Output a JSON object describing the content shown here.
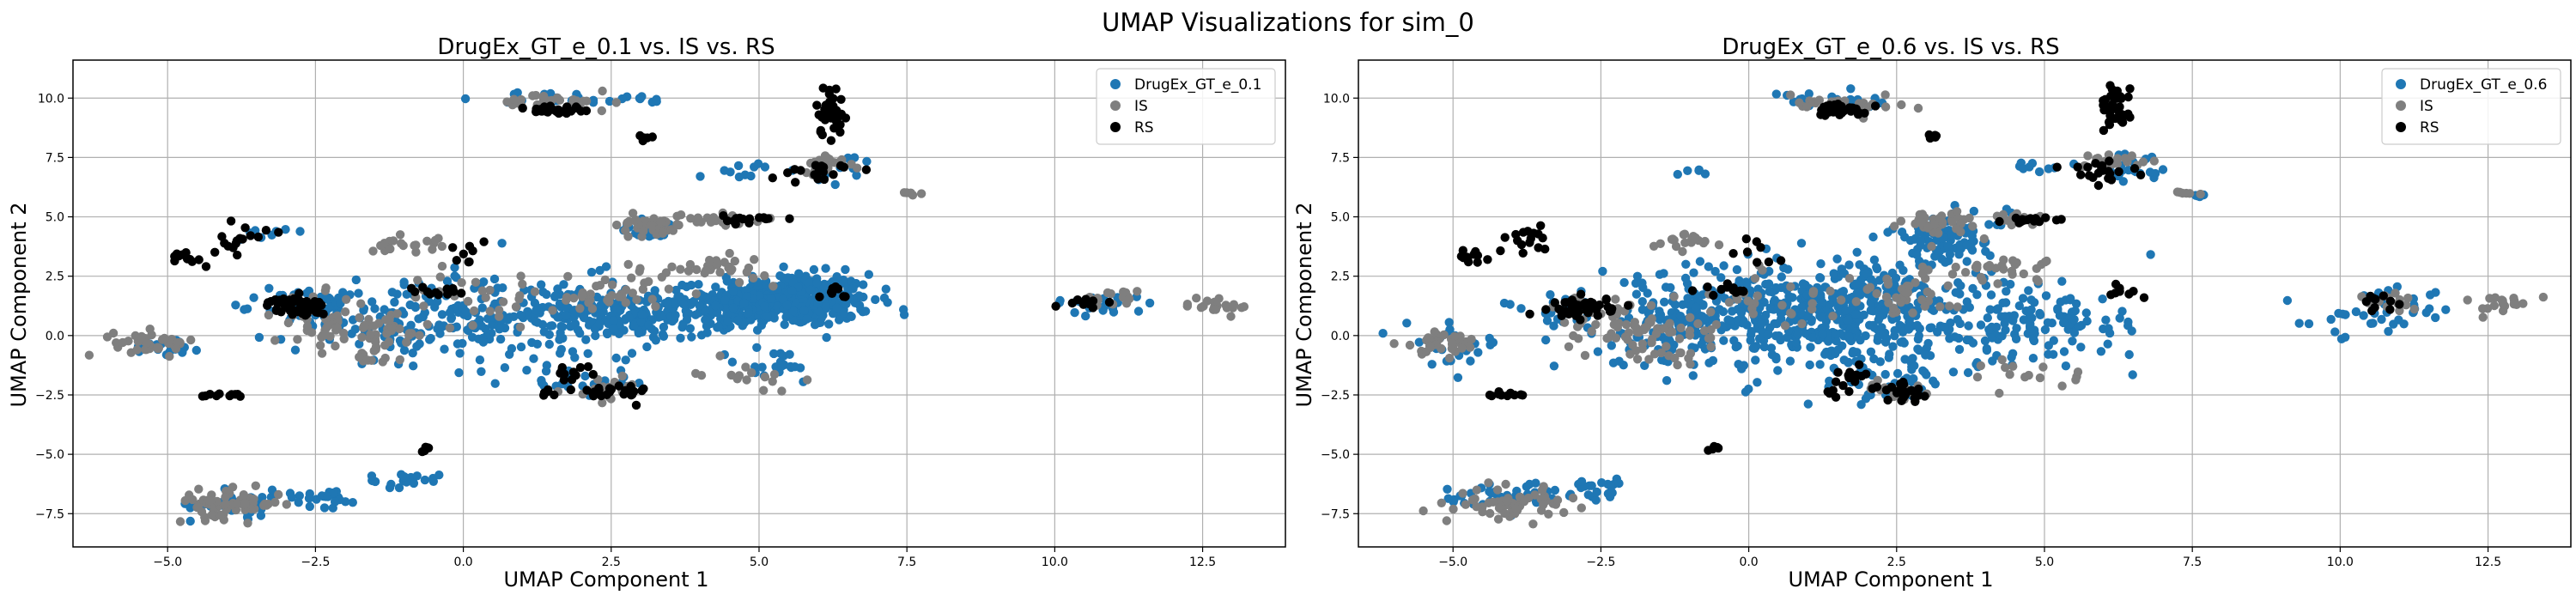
{
  "figure": {
    "suptitle": "UMAP Visualizations for sim_0"
  },
  "chart_data": [
    {
      "type": "scatter",
      "title": "DrugEx_GT_e_0.1 vs. IS vs. RS",
      "xlabel": "UMAP Component 1",
      "ylabel": "UMAP Component 2",
      "xlim": [
        -6.6,
        13.9
      ],
      "ylim": [
        -8.9,
        11.6
      ],
      "xticks": [
        -5.0,
        -2.5,
        0.0,
        2.5,
        5.0,
        7.5,
        10.0,
        12.5
      ],
      "xtick_labels": [
        "−5.0",
        "−2.5",
        "0.0",
        "2.5",
        "5.0",
        "7.5",
        "10.0",
        "12.5"
      ],
      "yticks": [
        -7.5,
        -5.0,
        -2.5,
        0.0,
        2.5,
        5.0,
        7.5,
        10.0
      ],
      "ytick_labels": [
        "−7.5",
        "−5.0",
        "−2.5",
        "0.0",
        "2.5",
        "5.0",
        "7.5",
        "10.0"
      ],
      "grid": true,
      "legend_position": "top-right",
      "series": [
        {
          "name": "DrugEx_GT_e_0.1",
          "color": "#1f77b4",
          "clusters": [
            {
              "x": 5.5,
              "y": 1.5,
              "sx": 0.7,
              "sy": 0.55,
              "n": 420
            },
            {
              "x": 4.8,
              "y": 1.2,
              "sx": 0.35,
              "sy": 0.35,
              "n": 90
            },
            {
              "x": 3.1,
              "y": 0.9,
              "sx": 0.7,
              "sy": 0.5,
              "n": 160
            },
            {
              "x": 1.2,
              "y": 0.7,
              "sx": 1.3,
              "sy": 0.9,
              "n": 170
            },
            {
              "x": -1.0,
              "y": 0.8,
              "sx": 1.0,
              "sy": 0.9,
              "n": 120
            },
            {
              "x": -2.6,
              "y": 1.2,
              "sx": 0.4,
              "sy": 0.35,
              "n": 40
            },
            {
              "x": 1.9,
              "y": -1.8,
              "sx": 0.6,
              "sy": 0.4,
              "n": 25
            },
            {
              "x": 5.2,
              "y": -1.3,
              "sx": 0.5,
              "sy": 0.4,
              "n": 20
            },
            {
              "x": 3.2,
              "y": 4.5,
              "sx": 0.3,
              "sy": 0.2,
              "n": 25
            },
            {
              "x": 1.5,
              "y": 10.0,
              "sx": 0.6,
              "sy": 0.15,
              "n": 20
            },
            {
              "x": 3.0,
              "y": 9.9,
              "sx": 0.2,
              "sy": 0.1,
              "n": 8
            },
            {
              "x": 6.5,
              "y": 7.0,
              "sx": 0.35,
              "sy": 0.3,
              "n": 15
            },
            {
              "x": 4.7,
              "y": 6.9,
              "sx": 0.4,
              "sy": 0.2,
              "n": 10
            },
            {
              "x": 10.8,
              "y": 1.3,
              "sx": 0.5,
              "sy": 0.25,
              "n": 18
            },
            {
              "x": -5.0,
              "y": -0.4,
              "sx": 0.3,
              "sy": 0.2,
              "n": 20
            },
            {
              "x": -3.8,
              "y": -7.1,
              "sx": 0.4,
              "sy": 0.3,
              "n": 35
            },
            {
              "x": -2.3,
              "y": -6.8,
              "sx": 0.35,
              "sy": 0.2,
              "n": 25
            },
            {
              "x": -1.0,
              "y": -6.1,
              "sx": 0.3,
              "sy": 0.15,
              "n": 20
            },
            {
              "x": -3.4,
              "y": 4.3,
              "sx": 0.2,
              "sy": 0.2,
              "n": 8
            }
          ]
        },
        {
          "name": "IS",
          "color": "#7f7f7f",
          "clusters": [
            {
              "x": -5.2,
              "y": -0.3,
              "sx": 0.35,
              "sy": 0.25,
              "n": 40
            },
            {
              "x": -4.0,
              "y": -7.1,
              "sx": 0.45,
              "sy": 0.3,
              "n": 60
            },
            {
              "x": -2.4,
              "y": 0.5,
              "sx": 0.4,
              "sy": 0.6,
              "n": 40
            },
            {
              "x": -1.5,
              "y": 0.2,
              "sx": 0.5,
              "sy": 0.4,
              "n": 40
            },
            {
              "x": 3.2,
              "y": 4.7,
              "sx": 0.3,
              "sy": 0.3,
              "n": 40
            },
            {
              "x": 4.2,
              "y": 2.8,
              "sx": 0.5,
              "sy": 0.25,
              "n": 30
            },
            {
              "x": 4.5,
              "y": 4.9,
              "sx": 0.3,
              "sy": 0.12,
              "n": 20
            },
            {
              "x": 2.5,
              "y": 1.8,
              "sx": 0.5,
              "sy": 0.5,
              "n": 40
            },
            {
              "x": 1.6,
              "y": 9.8,
              "sx": 0.5,
              "sy": 0.2,
              "n": 30
            },
            {
              "x": 6.2,
              "y": 7.3,
              "sx": 0.25,
              "sy": 0.2,
              "n": 20
            },
            {
              "x": 10.9,
              "y": 1.5,
              "sx": 0.3,
              "sy": 0.2,
              "n": 15
            },
            {
              "x": 12.8,
              "y": 1.3,
              "sx": 0.3,
              "sy": 0.2,
              "n": 20
            },
            {
              "x": 0.2,
              "y": 1.5,
              "sx": 0.6,
              "sy": 0.6,
              "n": 30
            },
            {
              "x": -1.0,
              "y": 3.9,
              "sx": 0.3,
              "sy": 0.2,
              "n": 20
            },
            {
              "x": 2.5,
              "y": -2.3,
              "sx": 0.3,
              "sy": 0.25,
              "n": 20
            },
            {
              "x": 7.5,
              "y": 6.0,
              "sx": 0.12,
              "sy": 0.05,
              "n": 6
            },
            {
              "x": 4.8,
              "y": -1.6,
              "sx": 0.4,
              "sy": 0.3,
              "n": 15
            },
            {
              "x": -1.6,
              "y": -0.9,
              "sx": 0.3,
              "sy": 0.2,
              "n": 10
            }
          ]
        },
        {
          "name": "RS",
          "color": "#000000",
          "clusters": [
            {
              "x": -2.8,
              "y": 1.2,
              "sx": 0.25,
              "sy": 0.2,
              "n": 50
            },
            {
              "x": 6.2,
              "y": 9.5,
              "sx": 0.12,
              "sy": 0.55,
              "n": 35
            },
            {
              "x": 1.6,
              "y": 9.5,
              "sx": 0.3,
              "sy": 0.12,
              "n": 30
            },
            {
              "x": 2.6,
              "y": -2.4,
              "sx": 0.25,
              "sy": 0.2,
              "n": 25
            },
            {
              "x": 4.9,
              "y": 4.9,
              "sx": 0.25,
              "sy": 0.08,
              "n": 15
            },
            {
              "x": 5.9,
              "y": 6.9,
              "sx": 0.35,
              "sy": 0.25,
              "n": 20
            },
            {
              "x": -3.7,
              "y": 4.0,
              "sx": 0.2,
              "sy": 0.3,
              "n": 15
            },
            {
              "x": -4.6,
              "y": 3.3,
              "sx": 0.2,
              "sy": 0.2,
              "n": 12
            },
            {
              "x": -4.1,
              "y": -2.5,
              "sx": 0.2,
              "sy": 0.05,
              "n": 10
            },
            {
              "x": -0.6,
              "y": -4.8,
              "sx": 0.06,
              "sy": 0.06,
              "n": 5
            },
            {
              "x": 10.6,
              "y": 1.4,
              "sx": 0.25,
              "sy": 0.2,
              "n": 10
            },
            {
              "x": -0.5,
              "y": 1.9,
              "sx": 0.2,
              "sy": 0.15,
              "n": 12
            },
            {
              "x": 1.8,
              "y": -1.7,
              "sx": 0.2,
              "sy": 0.2,
              "n": 12
            },
            {
              "x": 3.1,
              "y": 8.4,
              "sx": 0.08,
              "sy": 0.08,
              "n": 5
            },
            {
              "x": 0.2,
              "y": 3.6,
              "sx": 0.2,
              "sy": 0.3,
              "n": 8
            },
            {
              "x": 1.4,
              "y": -2.4,
              "sx": 0.1,
              "sy": 0.08,
              "n": 6
            },
            {
              "x": 6.3,
              "y": 1.8,
              "sx": 0.15,
              "sy": 0.15,
              "n": 8
            }
          ]
        }
      ]
    },
    {
      "type": "scatter",
      "title": "DrugEx_GT_e_0.6 vs. IS vs. RS",
      "xlabel": "UMAP Component 1",
      "ylabel": "UMAP Component 2",
      "xlim": [
        -6.6,
        13.9
      ],
      "ylim": [
        -8.9,
        11.6
      ],
      "xticks": [
        -5.0,
        -2.5,
        0.0,
        2.5,
        5.0,
        7.5,
        10.0,
        12.5
      ],
      "xtick_labels": [
        "−5.0",
        "−2.5",
        "0.0",
        "2.5",
        "5.0",
        "7.5",
        "10.0",
        "12.5"
      ],
      "yticks": [
        -7.5,
        -5.0,
        -2.5,
        0.0,
        2.5,
        5.0,
        7.5,
        10.0
      ],
      "ytick_labels": [
        "−7.5",
        "−5.0",
        "−2.5",
        "0.0",
        "2.5",
        "5.0",
        "7.5",
        "10.0"
      ],
      "grid": true,
      "legend_position": "top-right",
      "series": [
        {
          "name": "DrugEx_GT_e_0.6",
          "color": "#1f77b4",
          "clusters": [
            {
              "x": 1.0,
              "y": 0.8,
              "sx": 1.6,
              "sy": 1.2,
              "n": 420
            },
            {
              "x": 2.3,
              "y": 1.5,
              "sx": 0.9,
              "sy": 1.0,
              "n": 150
            },
            {
              "x": -1.0,
              "y": 0.6,
              "sx": 1.1,
              "sy": 0.9,
              "n": 120
            },
            {
              "x": 3.4,
              "y": 4.2,
              "sx": 0.5,
              "sy": 0.5,
              "n": 80
            },
            {
              "x": 4.2,
              "y": 0.3,
              "sx": 0.6,
              "sy": 0.7,
              "n": 60
            },
            {
              "x": 5.5,
              "y": 0.4,
              "sx": 0.6,
              "sy": 0.6,
              "n": 50
            },
            {
              "x": 2.2,
              "y": -1.8,
              "sx": 0.6,
              "sy": 0.6,
              "n": 40
            },
            {
              "x": 6.4,
              "y": 7.0,
              "sx": 0.4,
              "sy": 0.3,
              "n": 25
            },
            {
              "x": 1.5,
              "y": 9.8,
              "sx": 0.6,
              "sy": 0.2,
              "n": 20
            },
            {
              "x": 10.7,
              "y": 1.0,
              "sx": 0.6,
              "sy": 0.5,
              "n": 40
            },
            {
              "x": -4.2,
              "y": -6.8,
              "sx": 0.5,
              "sy": 0.3,
              "n": 35
            },
            {
              "x": -2.6,
              "y": -6.5,
              "sx": 0.4,
              "sy": 0.25,
              "n": 25
            },
            {
              "x": -5.0,
              "y": -0.4,
              "sx": 0.4,
              "sy": 0.4,
              "n": 25
            },
            {
              "x": -0.8,
              "y": 6.9,
              "sx": 0.15,
              "sy": 0.1,
              "n": 5
            },
            {
              "x": 4.8,
              "y": 7.1,
              "sx": 0.3,
              "sy": 0.1,
              "n": 8
            },
            {
              "x": 7.6,
              "y": 5.9,
              "sx": 0.15,
              "sy": 0.05,
              "n": 5
            },
            {
              "x": -3.1,
              "y": 1.1,
              "sx": 0.3,
              "sy": 0.3,
              "n": 20
            }
          ]
        },
        {
          "name": "IS",
          "color": "#7f7f7f",
          "clusters": [
            {
              "x": -5.2,
              "y": -0.3,
              "sx": 0.35,
              "sy": 0.25,
              "n": 40
            },
            {
              "x": -4.0,
              "y": -7.1,
              "sx": 0.45,
              "sy": 0.3,
              "n": 60
            },
            {
              "x": -2.4,
              "y": 0.5,
              "sx": 0.4,
              "sy": 0.6,
              "n": 40
            },
            {
              "x": -1.5,
              "y": 0.2,
              "sx": 0.5,
              "sy": 0.4,
              "n": 40
            },
            {
              "x": 3.2,
              "y": 4.7,
              "sx": 0.3,
              "sy": 0.3,
              "n": 40
            },
            {
              "x": 4.2,
              "y": 2.8,
              "sx": 0.5,
              "sy": 0.25,
              "n": 30
            },
            {
              "x": 4.5,
              "y": 4.9,
              "sx": 0.3,
              "sy": 0.12,
              "n": 20
            },
            {
              "x": 2.5,
              "y": 1.8,
              "sx": 0.5,
              "sy": 0.5,
              "n": 40
            },
            {
              "x": 1.6,
              "y": 9.8,
              "sx": 0.5,
              "sy": 0.2,
              "n": 30
            },
            {
              "x": 6.2,
              "y": 7.3,
              "sx": 0.25,
              "sy": 0.2,
              "n": 20
            },
            {
              "x": 10.9,
              "y": 1.5,
              "sx": 0.3,
              "sy": 0.2,
              "n": 15
            },
            {
              "x": 12.8,
              "y": 1.3,
              "sx": 0.3,
              "sy": 0.2,
              "n": 20
            },
            {
              "x": 0.2,
              "y": 1.5,
              "sx": 0.6,
              "sy": 0.6,
              "n": 30
            },
            {
              "x": -1.0,
              "y": 3.9,
              "sx": 0.3,
              "sy": 0.2,
              "n": 20
            },
            {
              "x": 2.5,
              "y": -2.3,
              "sx": 0.3,
              "sy": 0.25,
              "n": 20
            },
            {
              "x": 7.5,
              "y": 6.0,
              "sx": 0.12,
              "sy": 0.05,
              "n": 6
            },
            {
              "x": 4.8,
              "y": -1.6,
              "sx": 0.4,
              "sy": 0.3,
              "n": 15
            },
            {
              "x": -1.6,
              "y": -0.9,
              "sx": 0.3,
              "sy": 0.2,
              "n": 10
            }
          ]
        },
        {
          "name": "RS",
          "color": "#000000",
          "clusters": [
            {
              "x": -2.8,
              "y": 1.2,
              "sx": 0.25,
              "sy": 0.2,
              "n": 50
            },
            {
              "x": 6.2,
              "y": 9.5,
              "sx": 0.12,
              "sy": 0.55,
              "n": 35
            },
            {
              "x": 1.6,
              "y": 9.5,
              "sx": 0.3,
              "sy": 0.12,
              "n": 30
            },
            {
              "x": 2.6,
              "y": -2.4,
              "sx": 0.25,
              "sy": 0.2,
              "n": 25
            },
            {
              "x": 4.9,
              "y": 4.9,
              "sx": 0.25,
              "sy": 0.08,
              "n": 15
            },
            {
              "x": 5.9,
              "y": 6.9,
              "sx": 0.35,
              "sy": 0.25,
              "n": 20
            },
            {
              "x": -3.7,
              "y": 4.0,
              "sx": 0.2,
              "sy": 0.3,
              "n": 15
            },
            {
              "x": -4.6,
              "y": 3.3,
              "sx": 0.2,
              "sy": 0.2,
              "n": 12
            },
            {
              "x": -4.1,
              "y": -2.5,
              "sx": 0.2,
              "sy": 0.05,
              "n": 10
            },
            {
              "x": -0.6,
              "y": -4.8,
              "sx": 0.06,
              "sy": 0.06,
              "n": 5
            },
            {
              "x": 10.6,
              "y": 1.4,
              "sx": 0.25,
              "sy": 0.2,
              "n": 10
            },
            {
              "x": -0.5,
              "y": 1.9,
              "sx": 0.2,
              "sy": 0.15,
              "n": 12
            },
            {
              "x": 1.8,
              "y": -1.7,
              "sx": 0.2,
              "sy": 0.2,
              "n": 12
            },
            {
              "x": 3.1,
              "y": 8.4,
              "sx": 0.08,
              "sy": 0.08,
              "n": 5
            },
            {
              "x": 0.2,
              "y": 3.6,
              "sx": 0.2,
              "sy": 0.3,
              "n": 8
            },
            {
              "x": 1.4,
              "y": -2.4,
              "sx": 0.1,
              "sy": 0.08,
              "n": 6
            },
            {
              "x": 6.3,
              "y": 1.8,
              "sx": 0.15,
              "sy": 0.15,
              "n": 8
            }
          ]
        }
      ]
    }
  ]
}
